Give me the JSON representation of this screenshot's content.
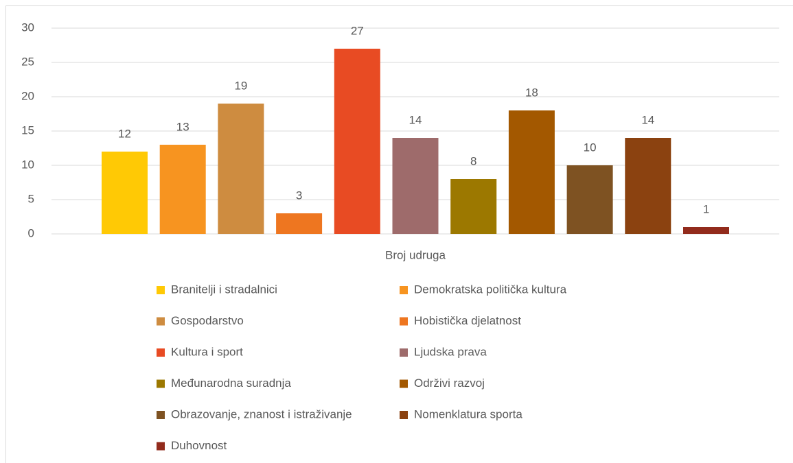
{
  "chart_data": {
    "type": "bar",
    "categories": [
      "Broj udruga"
    ],
    "series": [
      {
        "name": "Branitelji i stradalnici",
        "color": "#FFC905",
        "values": [
          12
        ]
      },
      {
        "name": "Demokratska politička kultura",
        "color": "#F79420",
        "values": [
          13
        ]
      },
      {
        "name": "Gospodarstvo",
        "color": "#CE8C40",
        "values": [
          19
        ]
      },
      {
        "name": "Hobistička djelatnost",
        "color": "#EE7620",
        "values": [
          3
        ]
      },
      {
        "name": "Kultura i sport",
        "color": "#E84B23",
        "values": [
          27
        ]
      },
      {
        "name": "Ljudska prava",
        "color": "#9E6B6B",
        "values": [
          14
        ]
      },
      {
        "name": "Međunarodna suradnja",
        "color": "#9C7800",
        "values": [
          8
        ]
      },
      {
        "name": "Održivi razvoj",
        "color": "#A35800",
        "values": [
          18
        ]
      },
      {
        "name": "Obrazovanje, znanost i istraživanje",
        "color": "#7E5222",
        "values": [
          10
        ]
      },
      {
        "name": "Nomenklatura sporta",
        "color": "#8B4210",
        "values": [
          14
        ]
      },
      {
        "name": "Duhovnost",
        "color": "#922B1C",
        "values": [
          1
        ]
      }
    ],
    "ylim": [
      0,
      30
    ],
    "yticks": [
      0,
      5,
      10,
      15,
      20,
      25,
      30
    ],
    "grid": true,
    "legend": "bottom"
  }
}
